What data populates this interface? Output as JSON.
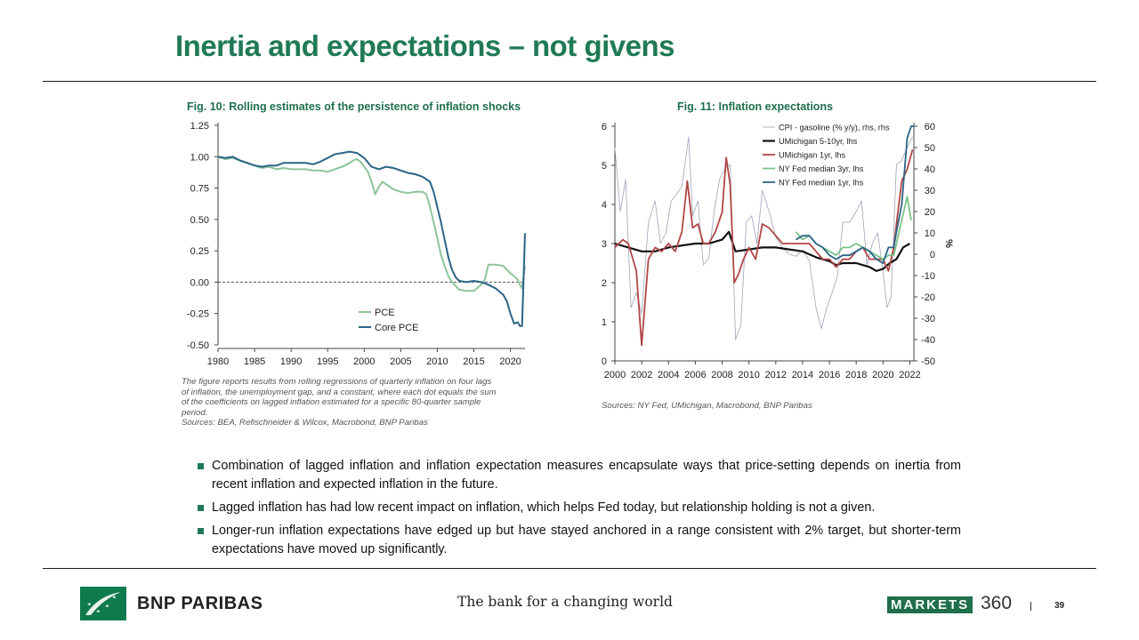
{
  "title": "Inertia and expectations – not givens",
  "fig10": {
    "title": "Fig. 10: Rolling estimates of the persistence of inflation shocks",
    "note_lines": [
      "The figure reports results from rolling regressions of quarterly inflation on four lags",
      "of inflation, the unemployment gap, and a constant, where each dot equals the sum",
      "of the coefficients on lagged inflation estimated for a specific 80-quarter sample",
      "period."
    ],
    "sources": "Sources: BEA, Refischneider & Wilcox, Macrobond, BNP Paribas"
  },
  "fig11": {
    "title": "Fig. 11: Inflation expectations",
    "sources": "Sources: NY Fed, UMichigan, Macrobond, BNP Paribas"
  },
  "bullets": [
    "Combination of lagged inflation and inflation expectation measures encapsulate ways that price-setting depends on inertia from recent inflation and expected inflation in the future.",
    "Lagged inflation has had low recent impact on inflation, which helps Fed today, but relationship holding is not a given.",
    "Longer-run inflation expectations have edged up but have stayed anchored in a range consistent with 2% target, but shorter-term expectations have moved up significantly."
  ],
  "footer": {
    "brand": "BNP PARIBAS",
    "tagline": "The bank for a changing world",
    "markets": "MARKETS",
    "markets_num": "360",
    "page": "39"
  },
  "chart_data": [
    {
      "type": "line",
      "id": "fig10",
      "title": "Fig. 10: Rolling estimates of the persistence of inflation shocks",
      "xlabel": "",
      "ylabel": "",
      "xlim": [
        1980,
        2022
      ],
      "ylim": [
        -0.5,
        1.25
      ],
      "xticks": [
        1980,
        1985,
        1990,
        1995,
        2000,
        2005,
        2010,
        2015,
        2020
      ],
      "yticks": [
        1.25,
        1.0,
        0.75,
        0.5,
        0.25,
        0.0,
        -0.25,
        -0.5
      ],
      "ytick_labels": [
        "1.25",
        "1.00",
        "0.75",
        "0.50",
        "0.25",
        "0.00",
        "-0.25",
        "-0.50"
      ],
      "reference_line": 0,
      "legend": "bottom-center",
      "series": [
        {
          "name": "PCE",
          "color": "#8cc49a",
          "x": [
            1980,
            1981,
            1982,
            1983,
            1984,
            1985,
            1986,
            1987,
            1988,
            1989,
            1990,
            1991,
            1992,
            1993,
            1994,
            1995,
            1996,
            1997,
            1998,
            1998.5,
            1999,
            1999.5,
            2000,
            2000.5,
            2001,
            2001.5,
            2002,
            2002.5,
            2003,
            2004,
            2005,
            2006,
            2007,
            2008,
            2008.5,
            2009,
            2009.5,
            2010,
            2010.5,
            2011,
            2011.5,
            2012,
            2012.5,
            2013,
            2014,
            2015,
            2016,
            2016.5,
            2017,
            2018,
            2019,
            2020,
            2020.5,
            2021,
            2021.3,
            2021.6,
            2022
          ],
          "y": [
            1.0,
            0.98,
            0.99,
            0.97,
            0.95,
            0.93,
            0.91,
            0.92,
            0.9,
            0.91,
            0.9,
            0.9,
            0.9,
            0.89,
            0.89,
            0.88,
            0.9,
            0.92,
            0.95,
            0.97,
            0.98,
            0.96,
            0.92,
            0.88,
            0.8,
            0.7,
            0.76,
            0.8,
            0.78,
            0.74,
            0.72,
            0.71,
            0.72,
            0.72,
            0.7,
            0.6,
            0.48,
            0.35,
            0.22,
            0.13,
            0.05,
            0.0,
            -0.03,
            -0.06,
            -0.07,
            -0.07,
            -0.02,
            0.02,
            0.14,
            0.14,
            0.13,
            0.07,
            0.05,
            0.02,
            -0.02,
            -0.05,
            0.13
          ]
        },
        {
          "name": "Core PCE",
          "color": "#2a6486",
          "x": [
            1980,
            1981,
            1982,
            1983,
            1984,
            1985,
            1986,
            1987,
            1988,
            1989,
            1990,
            1991,
            1992,
            1993,
            1994,
            1995,
            1996,
            1997,
            1998,
            1999,
            2000,
            2001,
            2002,
            2003,
            2004,
            2005,
            2006,
            2007,
            2008,
            2009,
            2009.5,
            2010,
            2010.5,
            2011,
            2011.5,
            2012,
            2012.5,
            2013,
            2014,
            2015,
            2016,
            2017,
            2018,
            2019,
            2019.5,
            2020,
            2020.5,
            2021,
            2021.3,
            2021.6,
            2022
          ],
          "y": [
            1.0,
            0.99,
            1.0,
            0.97,
            0.95,
            0.93,
            0.92,
            0.93,
            0.93,
            0.95,
            0.95,
            0.95,
            0.95,
            0.94,
            0.96,
            0.99,
            1.02,
            1.03,
            1.04,
            1.03,
            0.99,
            0.92,
            0.9,
            0.92,
            0.91,
            0.89,
            0.87,
            0.86,
            0.84,
            0.8,
            0.72,
            0.6,
            0.48,
            0.34,
            0.2,
            0.1,
            0.04,
            0.01,
            0.0,
            0.01,
            0.0,
            -0.02,
            -0.05,
            -0.1,
            -0.15,
            -0.25,
            -0.33,
            -0.32,
            -0.35,
            -0.35,
            0.39
          ]
        }
      ]
    },
    {
      "type": "line",
      "id": "fig11",
      "title": "Fig. 11: Inflation expectations",
      "xlim": [
        2000,
        2022.3
      ],
      "ylim_left": [
        0,
        6
      ],
      "ylim_right": [
        -50,
        60
      ],
      "ylabel_right": "%",
      "xticks": [
        2000,
        2002,
        2004,
        2006,
        2008,
        2010,
        2012,
        2014,
        2016,
        2018,
        2020,
        2022
      ],
      "yticks_left": [
        0,
        1,
        2,
        3,
        4,
        5,
        6
      ],
      "yticks_right": [
        60,
        50,
        40,
        30,
        20,
        10,
        0,
        -10,
        -20,
        -30,
        -40,
        -50
      ],
      "legend": "top-right",
      "series": [
        {
          "name": "CPI - gasoline (% y/y), rhs, rhs",
          "axis": "right",
          "color": "#9da3b8",
          "x": [
            2000,
            2000.4,
            2000.8,
            2001.2,
            2001.6,
            2002,
            2002.5,
            2003,
            2003.4,
            2003.8,
            2004.2,
            2004.6,
            2005,
            2005.5,
            2005.8,
            2006.2,
            2006.6,
            2007,
            2007.4,
            2007.8,
            2008.2,
            2008.6,
            2009,
            2009.4,
            2009.8,
            2010.2,
            2010.6,
            2011,
            2011.5,
            2012,
            2012.5,
            2013,
            2013.5,
            2014,
            2014.5,
            2015,
            2015.4,
            2015.8,
            2016.2,
            2016.6,
            2017,
            2017.5,
            2018,
            2018.4,
            2018.8,
            2019.2,
            2019.6,
            2020,
            2020.3,
            2020.6,
            2021,
            2021.4,
            2021.8,
            2022.2
          ],
          "y": [
            50,
            20,
            35,
            -25,
            -18,
            -28,
            15,
            25,
            5,
            10,
            25,
            28,
            32,
            55,
            18,
            25,
            -5,
            -2,
            20,
            35,
            40,
            42,
            -40,
            -33,
            15,
            18,
            5,
            30,
            20,
            8,
            3,
            0,
            -1,
            2,
            -3,
            -25,
            -35,
            -25,
            -18,
            -10,
            15,
            15,
            20,
            25,
            -5,
            5,
            10,
            -8,
            -25,
            -20,
            42,
            44,
            50,
            55
          ]
        },
        {
          "name": "UMichigan 5-10yr, lhs",
          "axis": "left",
          "color": "#111111",
          "width": 2.2,
          "x": [
            2000,
            2001,
            2002,
            2003,
            2004,
            2005,
            2006,
            2007,
            2008,
            2008.5,
            2009,
            2010,
            2011,
            2012,
            2013,
            2014,
            2015,
            2016,
            2016.5,
            2017,
            2018,
            2019,
            2019.5,
            2020,
            2020.5,
            2021,
            2021.5,
            2022
          ],
          "y": [
            3.0,
            2.9,
            2.8,
            2.8,
            2.9,
            2.95,
            3.0,
            3.0,
            3.1,
            3.3,
            2.8,
            2.85,
            2.9,
            2.9,
            2.85,
            2.8,
            2.65,
            2.55,
            2.45,
            2.5,
            2.5,
            2.4,
            2.3,
            2.35,
            2.5,
            2.6,
            2.9,
            3.0
          ]
        },
        {
          "name": "UMichigan 1yr, lhs",
          "axis": "left",
          "color": "#b14646",
          "x": [
            2000,
            2000.6,
            2001,
            2001.6,
            2002,
            2002.5,
            2003,
            2003.5,
            2004,
            2004.5,
            2005,
            2005.4,
            2005.8,
            2006.2,
            2006.6,
            2007,
            2007.5,
            2008,
            2008.3,
            2008.6,
            2008.9,
            2009.2,
            2009.6,
            2010,
            2010.5,
            2011,
            2011.5,
            2012,
            2012.5,
            2013,
            2013.5,
            2014,
            2014.5,
            2015,
            2015.5,
            2016,
            2016.5,
            2017,
            2017.5,
            2018,
            2018.5,
            2019,
            2019.5,
            2020,
            2020.4,
            2020.8,
            2021,
            2021.4,
            2021.8,
            2022.2
          ],
          "y": [
            2.9,
            3.1,
            3.0,
            2.3,
            0.4,
            2.6,
            2.9,
            2.8,
            3.0,
            2.8,
            3.3,
            4.6,
            3.4,
            3.5,
            3.0,
            3.0,
            3.3,
            3.8,
            5.2,
            4.5,
            2.0,
            2.2,
            2.6,
            2.9,
            2.6,
            3.5,
            3.4,
            3.2,
            3.0,
            3.0,
            3.0,
            3.0,
            3.0,
            2.8,
            2.6,
            2.6,
            2.4,
            2.6,
            2.6,
            2.8,
            2.9,
            2.6,
            2.6,
            2.6,
            2.3,
            2.9,
            3.5,
            4.6,
            4.9,
            5.4
          ]
        },
        {
          "name": "NY Fed median 3yr, lhs",
          "axis": "left",
          "color": "#78c48a",
          "x": [
            2013.5,
            2014,
            2014.5,
            2015,
            2015.5,
            2016,
            2016.5,
            2017,
            2017.5,
            2018,
            2018.5,
            2019,
            2019.5,
            2020,
            2020.4,
            2020.8,
            2021,
            2021.4,
            2021.8,
            2022.1
          ],
          "y": [
            3.3,
            3.1,
            3.2,
            3.0,
            2.9,
            2.8,
            2.7,
            2.9,
            2.9,
            3.0,
            2.9,
            2.8,
            2.7,
            2.6,
            2.7,
            2.7,
            3.0,
            3.6,
            4.2,
            3.6
          ]
        },
        {
          "name": "NY Fed median 1yr, lhs",
          "axis": "left",
          "color": "#2a6486",
          "x": [
            2013.5,
            2014,
            2014.5,
            2015,
            2015.5,
            2016,
            2016.5,
            2017,
            2017.5,
            2018,
            2018.5,
            2019,
            2019.5,
            2020,
            2020.4,
            2020.8,
            2021,
            2021.4,
            2021.8,
            2022.1,
            2022.3
          ],
          "y": [
            3.1,
            3.2,
            3.2,
            3.0,
            2.9,
            2.7,
            2.6,
            2.7,
            2.7,
            2.8,
            2.9,
            2.8,
            2.6,
            2.5,
            2.9,
            2.9,
            3.3,
            4.0,
            5.7,
            6.0,
            6.0
          ]
        }
      ]
    }
  ]
}
